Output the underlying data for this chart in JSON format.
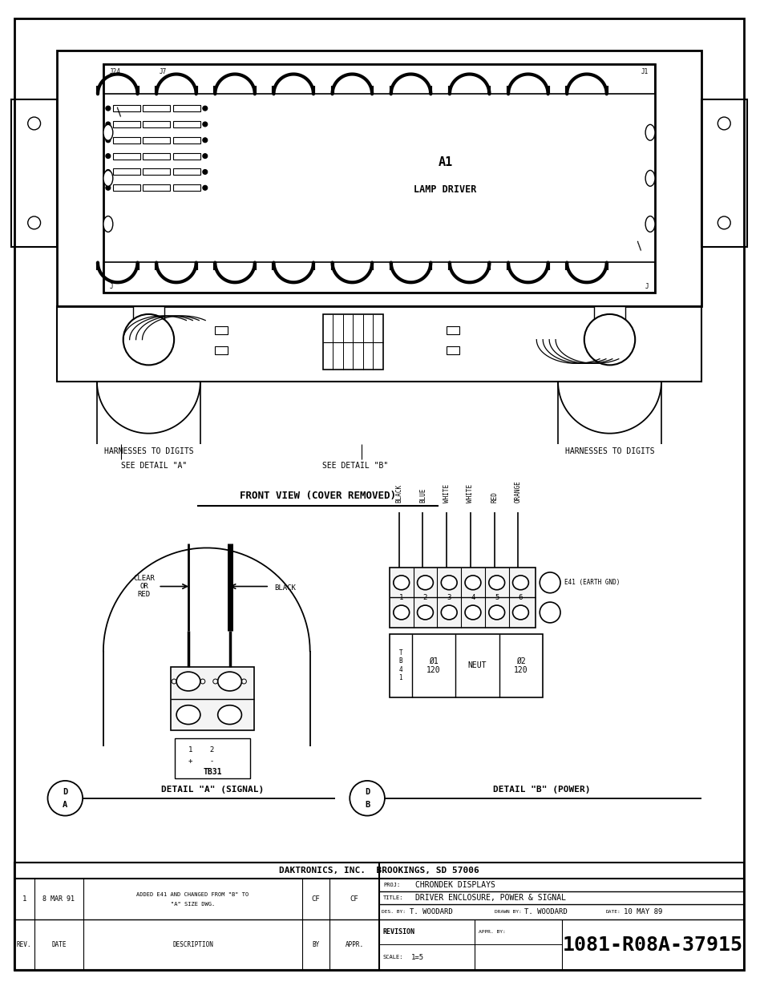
{
  "bg_color": "#ffffff",
  "page_width": 9.54,
  "page_height": 12.35,
  "company": "DAKTRONICS, INC.  BROOKINGS, SD 57006",
  "proj": "CHRONDEK DISPLAYS",
  "proj_label": "PROJ:",
  "title": "DRIVER ENCLOSURE, POWER & SIGNAL",
  "title_label": "TITLE:",
  "des_by_label": "DES. BY:",
  "des_by": "T. WOODARD",
  "drawn_by_label": "DRAWN BY:",
  "drawn_by": "T. WOODARD",
  "date_label": "DATE:",
  "date": "10 MAY 89",
  "scale_label": "SCALE:",
  "scale": "1=5",
  "drawing_num": "1081-R08A-37915",
  "revision_label": "REVISION",
  "appr_by_label": "APPR. BY:",
  "rev_num": "1",
  "rev_date": "8 MAR 91",
  "rev_desc1": "ADDED E41 AND CHANGED FROM \"B\" TO",
  "rev_desc2": "\"A\" SIZE DWG.",
  "rev_by": "CF",
  "rev_appr": "CF",
  "rev_hdr_rev": "REV.",
  "rev_hdr_date": "DATE",
  "rev_hdr_desc": "DESCRIPTION",
  "rev_hdr_by": "BY",
  "rev_hdr_appr": "APPR.",
  "front_view_label": "FRONT VIEW (COVER REMOVED)",
  "detail_a_label": "DETAIL \"A\" (SIGNAL)",
  "detail_b_label": "DETAIL \"B\" (POWER)",
  "see_detail_a": "SEE DETAIL \"A\"",
  "see_detail_b": "SEE DETAIL \"B\"",
  "harnesses_left": "HARNESSES TO DIGITS",
  "harnesses_right": "HARNESSES TO DIGITS",
  "a1_label": "A1",
  "lamp_driver_label": "LAMP DRIVER",
  "j24_label": "J24",
  "j7_label": "J7",
  "j1_label": "J1",
  "j_bot_left": "J",
  "j_bot_right": "J",
  "tb31_label": "TB31",
  "e41_label": "E41 (EARTH GND)",
  "wire_labels": [
    "BLACK",
    "BLUE",
    "WHITE",
    "WHITE",
    "RED",
    "ORANGE"
  ],
  "terminal_nums": [
    "1",
    "2",
    "3",
    "4",
    "5",
    "6"
  ],
  "clear_or_red": "CLEAR\nOR\nRED",
  "black_label": "BLACK",
  "da_top": "D",
  "da_bot": "A",
  "db_top": "D",
  "db_bot": "B",
  "neut_label": "NEUT",
  "phi1_label": "Ø1\n120",
  "phi2_label": "Ø2\n120",
  "tb41_label": "T\nB\n4\n1"
}
